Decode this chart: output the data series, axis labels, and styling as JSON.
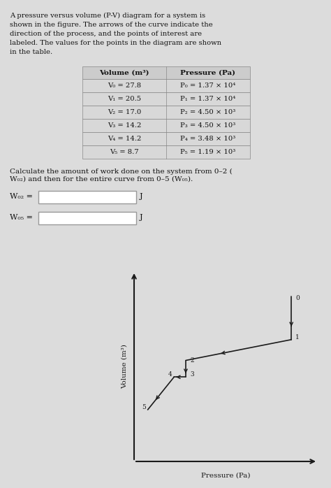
{
  "title_text": "A pressure versus volume (P-V) diagram for a system is\nshown in the figure. The arrows of the curve indicate the\ndirection of the process, and the points of interest are\nlabeled. The values for the points in the diagram are shown\nin the table.",
  "table_volumes": [
    27.8,
    20.5,
    17.0,
    14.2,
    14.2,
    8.7
  ],
  "table_pressures_str": [
    "1.37 × 10⁴",
    "1.37 × 10⁴",
    "4.50 × 10³",
    "4.50 × 10³",
    "3.48 × 10³",
    "1.19 × 10³"
  ],
  "table_pressures": [
    13700,
    13700,
    4500,
    4500,
    3480,
    1190
  ],
  "point_labels": [
    "0",
    "1",
    "2",
    "3",
    "4",
    "5"
  ],
  "volume_col_header": "Volume (m³)",
  "pressure_col_header": "Pressure (Pa)",
  "question_text": "Calculate the amount of work done on the system from 0–2 (",
  "question_text2": "W₀₂) and then for the entire curve from 0–5 (W₀₅).",
  "W02_label": "W₀₂ =",
  "W05_label": "W₀₅ =",
  "unit": "J",
  "xlabel": "Pressure (Pa)",
  "ylabel": "Volume (m³)",
  "bg_color": "#dcdcdc",
  "line_color": "#1a1a1a",
  "arrow_color": "#1a1a1a",
  "text_color": "#111111"
}
